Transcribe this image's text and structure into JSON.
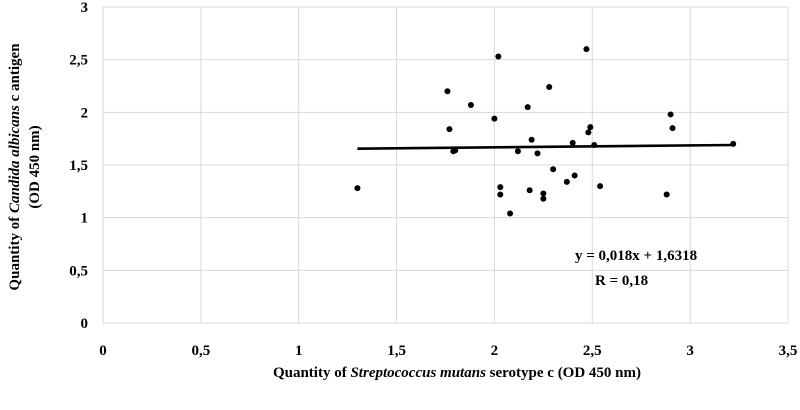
{
  "chart_data": {
    "type": "scatter",
    "title": "",
    "xlabel_parts": [
      "Quantity of ",
      "Streptococcus mutans",
      " serotype c (OD 450 nm)"
    ],
    "ylabel_line1_parts": [
      "Quantity of ",
      "Candida albicans",
      " c antigen"
    ],
    "ylabel_line2": "(OD 450 nm)",
    "xlim": [
      0,
      3.5
    ],
    "ylim": [
      0,
      3
    ],
    "x_ticks": [
      {
        "v": 0,
        "label": "0"
      },
      {
        "v": 0.5,
        "label": "0,5"
      },
      {
        "v": 1,
        "label": "1"
      },
      {
        "v": 1.5,
        "label": "1,5"
      },
      {
        "v": 2,
        "label": "2"
      },
      {
        "v": 2.5,
        "label": "2,5"
      },
      {
        "v": 3,
        "label": "3"
      },
      {
        "v": 3.5,
        "label": "3,5"
      }
    ],
    "y_ticks": [
      {
        "v": 0,
        "label": "0"
      },
      {
        "v": 0.5,
        "label": "0,5"
      },
      {
        "v": 1,
        "label": "1"
      },
      {
        "v": 1.5,
        "label": "1,5"
      },
      {
        "v": 2,
        "label": "2"
      },
      {
        "v": 2.5,
        "label": "2,5"
      },
      {
        "v": 3,
        "label": "3"
      }
    ],
    "grid": true,
    "points": [
      {
        "x": 1.3,
        "y": 1.28
      },
      {
        "x": 1.76,
        "y": 2.2
      },
      {
        "x": 1.77,
        "y": 1.84
      },
      {
        "x": 1.79,
        "y": 1.63
      },
      {
        "x": 1.8,
        "y": 1.64
      },
      {
        "x": 1.88,
        "y": 2.07
      },
      {
        "x": 2.0,
        "y": 1.94
      },
      {
        "x": 2.02,
        "y": 2.53
      },
      {
        "x": 2.03,
        "y": 1.29
      },
      {
        "x": 2.03,
        "y": 1.22
      },
      {
        "x": 2.08,
        "y": 1.04
      },
      {
        "x": 2.12,
        "y": 1.63
      },
      {
        "x": 2.17,
        "y": 2.05
      },
      {
        "x": 2.18,
        "y": 1.26
      },
      {
        "x": 2.19,
        "y": 1.74
      },
      {
        "x": 2.22,
        "y": 1.61
      },
      {
        "x": 2.25,
        "y": 1.23
      },
      {
        "x": 2.25,
        "y": 1.18
      },
      {
        "x": 2.28,
        "y": 2.24
      },
      {
        "x": 2.3,
        "y": 1.46
      },
      {
        "x": 2.37,
        "y": 1.34
      },
      {
        "x": 2.4,
        "y": 1.71
      },
      {
        "x": 2.41,
        "y": 1.4
      },
      {
        "x": 2.47,
        "y": 2.6
      },
      {
        "x": 2.48,
        "y": 1.81
      },
      {
        "x": 2.49,
        "y": 1.86
      },
      {
        "x": 2.51,
        "y": 1.69
      },
      {
        "x": 2.54,
        "y": 1.3
      },
      {
        "x": 2.88,
        "y": 1.22
      },
      {
        "x": 2.9,
        "y": 1.98
      },
      {
        "x": 2.91,
        "y": 1.85
      },
      {
        "x": 3.22,
        "y": 1.7
      }
    ],
    "trendline": {
      "slope": 0.018,
      "intercept": 1.6318,
      "x_range": [
        1.3,
        3.22
      ]
    },
    "annotations": {
      "equation": "y = 0,018x + 1,6318",
      "r_value": "R = 0,18"
    }
  }
}
